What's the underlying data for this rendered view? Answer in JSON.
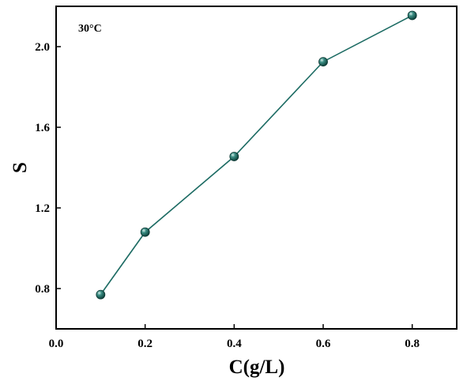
{
  "chart_data": {
    "type": "line",
    "annotation": "30°C",
    "xlabel": "C(g/L)",
    "ylabel": "S",
    "xlim": [
      0.0,
      0.9
    ],
    "ylim": [
      0.6,
      2.2
    ],
    "x_ticks": [
      0.0,
      0.2,
      0.4,
      0.6,
      0.8
    ],
    "x_tick_labels": [
      "0.0",
      "0.2",
      "0.4",
      "0.6",
      "0.8"
    ],
    "y_ticks": [
      0.8,
      1.2,
      1.6,
      2.0
    ],
    "y_tick_labels": [
      "0.8",
      "1.2",
      "1.6",
      "2.0"
    ],
    "grid": false,
    "legend": "none",
    "marker": "sphere",
    "color": "#1c6b63",
    "series": [
      {
        "x": [
          0.1,
          0.2,
          0.4,
          0.6,
          0.8
        ],
        "y": [
          0.77,
          1.08,
          1.455,
          1.925,
          2.155
        ]
      }
    ]
  }
}
